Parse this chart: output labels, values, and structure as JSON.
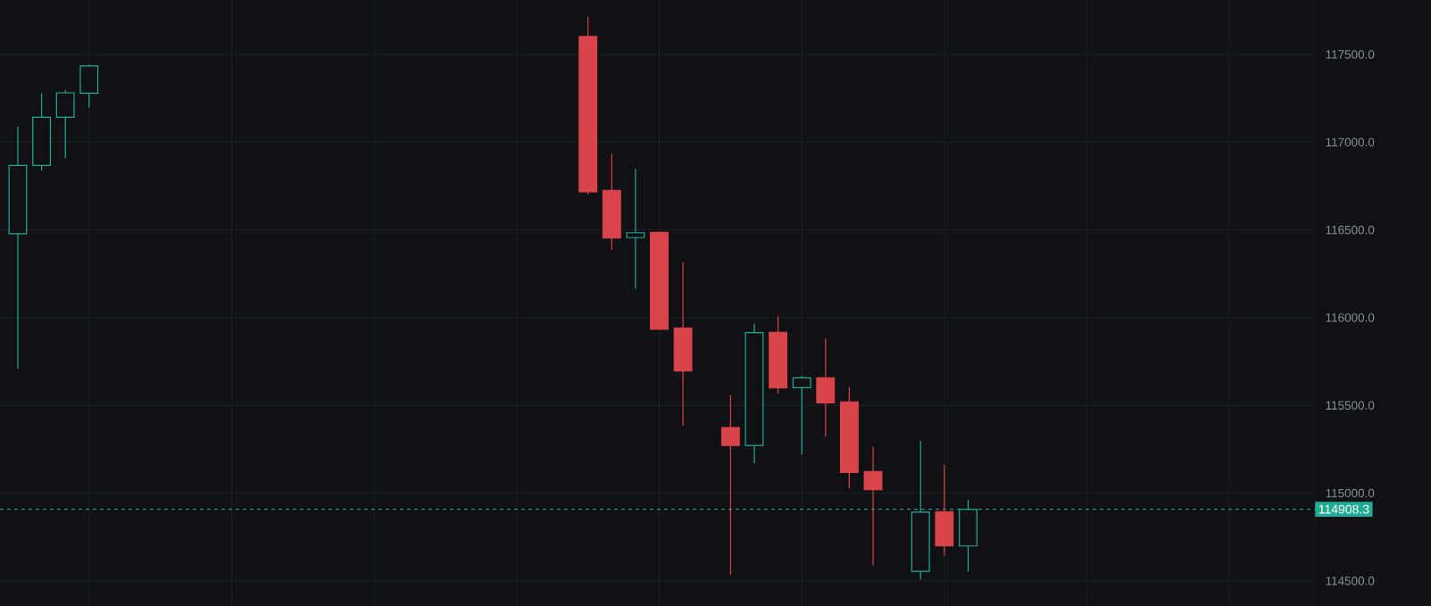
{
  "chart_data": {
    "type": "candlestick",
    "categories": [
      null,
      null,
      null,
      null,
      null,
      null,
      null,
      null,
      null,
      null,
      null,
      null,
      null,
      null,
      null,
      null,
      null,
      null,
      null,
      null,
      null,
      null,
      null,
      null,
      null,
      null,
      null,
      null,
      null,
      null,
      null,
      null,
      null,
      null,
      null,
      null,
      null,
      null,
      null,
      null,
      null,
      null,
      null,
      null,
      null,
      null,
      null,
      null,
      null,
      null,
      null,
      null,
      null,
      null,
      null,
      null
    ],
    "ohlc": [
      null,
      [
        116478,
        117088,
        115710,
        116867
      ],
      [
        116867,
        117279,
        116837,
        117142
      ],
      [
        117142,
        117298,
        116907,
        117281
      ],
      [
        117279,
        117442,
        117196,
        117434
      ],
      null,
      null,
      null,
      null,
      null,
      null,
      null,
      null,
      null,
      null,
      null,
      null,
      null,
      null,
      null,
      null,
      null,
      null,
      null,
      null,
      [
        117602,
        117714,
        116701,
        116717
      ],
      [
        116725,
        116933,
        116386,
        116454
      ],
      [
        116456,
        116849,
        116165,
        116484
      ],
      [
        116486,
        116486,
        115934,
        115934
      ],
      [
        115940,
        116315,
        115384,
        115696
      ],
      null,
      [
        115374,
        115557,
        114535,
        115271
      ],
      [
        115272,
        115966,
        115169,
        115915
      ],
      [
        115917,
        116008,
        115566,
        115599
      ],
      [
        115601,
        115668,
        115220,
        115657
      ],
      [
        115657,
        115881,
        115322,
        115515
      ],
      [
        115520,
        115606,
        115027,
        115118
      ],
      [
        115123,
        115264,
        114589,
        115020
      ],
      null,
      [
        114555,
        115298,
        114508,
        114892
      ],
      [
        114894,
        115160,
        114643,
        114699
      ],
      [
        114699,
        114962,
        114552,
        114908.3
      ],
      null,
      null,
      null,
      null,
      null,
      null,
      null,
      null,
      null,
      null,
      null,
      null,
      null,
      null
    ],
    "colors": [
      null,
      "#22ab94",
      "#22ab94",
      "#22ab94",
      "#22ab94",
      null,
      null,
      null,
      null,
      null,
      null,
      null,
      null,
      null,
      null,
      null,
      null,
      null,
      null,
      null,
      null,
      null,
      null,
      null,
      null,
      "#d9444a",
      "#d9444a",
      "#22ab94",
      "#d9444a",
      "#d9444a",
      null,
      "#d9444a",
      "#22ab94",
      "#d9444a",
      "#22ab94",
      "#d9444a",
      "#d9444a",
      "#d9444a",
      null,
      "#22ab94",
      "#d9444a",
      "#22ab94",
      null,
      null,
      null,
      null,
      null,
      null,
      null,
      null,
      null,
      null,
      null,
      null,
      null,
      null
    ],
    "ylim": [
      114357,
      117810
    ],
    "yticks": [
      {
        "value": 114500,
        "label": "114500.0"
      },
      {
        "value": 115000,
        "label": "115000.0"
      },
      {
        "value": 115500,
        "label": "115500.0"
      },
      {
        "value": 116000,
        "label": "116000.0"
      },
      {
        "value": 116500,
        "label": "116500.0"
      },
      {
        "value": 117000,
        "label": "117000.0"
      },
      {
        "value": 117500,
        "label": "117500.0"
      }
    ],
    "grid": true,
    "ref_lines": [
      {
        "axis": "y",
        "value": 114908.3,
        "label": "114908.3",
        "color": "#22ab94",
        "line_style": "dashed"
      }
    ]
  }
}
